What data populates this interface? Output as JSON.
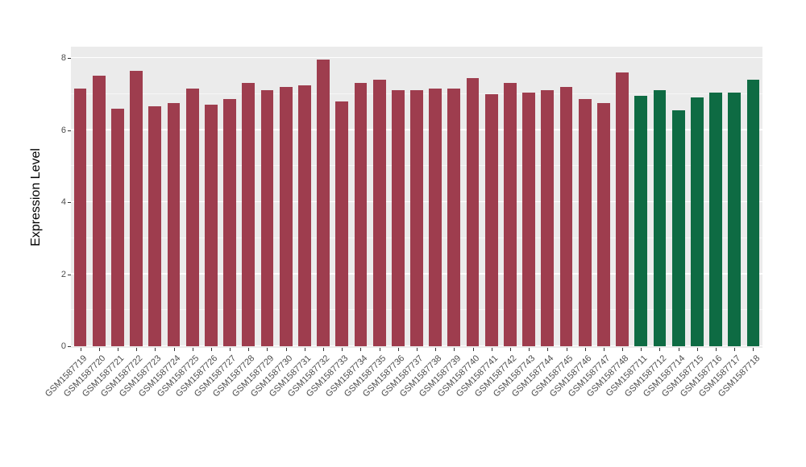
{
  "chart_data": {
    "type": "bar",
    "title": "",
    "xlabel": "",
    "ylabel": "Expression Level",
    "ylim": [
      0,
      8
    ],
    "yticks": [
      0,
      2,
      4,
      6,
      8
    ],
    "yticks_minor": [
      1,
      3,
      5,
      7
    ],
    "grid": true,
    "legend_position": "none",
    "panel_background": "#EBEBEB",
    "major_grid_color": "#FFFFFF",
    "minor_grid_color": "rgba(255,255,255,0.55)",
    "group_colors": {
      "test": "#9E3D4E",
      "control": "#0E6B43"
    },
    "bars": [
      {
        "label": "GSM1587719",
        "value": 7.15,
        "group": "test"
      },
      {
        "label": "GSM1587720",
        "value": 7.5,
        "group": "test"
      },
      {
        "label": "GSM1587721",
        "value": 6.6,
        "group": "test"
      },
      {
        "label": "GSM1587722",
        "value": 7.65,
        "group": "test"
      },
      {
        "label": "GSM1587723",
        "value": 6.65,
        "group": "test"
      },
      {
        "label": "GSM1587724",
        "value": 6.75,
        "group": "test"
      },
      {
        "label": "GSM1587725",
        "value": 7.15,
        "group": "test"
      },
      {
        "label": "GSM1587726",
        "value": 6.7,
        "group": "test"
      },
      {
        "label": "GSM1587727",
        "value": 6.85,
        "group": "test"
      },
      {
        "label": "GSM1587728",
        "value": 7.3,
        "group": "test"
      },
      {
        "label": "GSM1587729",
        "value": 7.1,
        "group": "test"
      },
      {
        "label": "GSM1587730",
        "value": 7.2,
        "group": "test"
      },
      {
        "label": "GSM1587731",
        "value": 7.25,
        "group": "test"
      },
      {
        "label": "GSM1587732",
        "value": 7.95,
        "group": "test"
      },
      {
        "label": "GSM1587733",
        "value": 6.8,
        "group": "test"
      },
      {
        "label": "GSM1587734",
        "value": 7.3,
        "group": "test"
      },
      {
        "label": "GSM1587735",
        "value": 7.4,
        "group": "test"
      },
      {
        "label": "GSM1587736",
        "value": 7.1,
        "group": "test"
      },
      {
        "label": "GSM1587737",
        "value": 7.1,
        "group": "test"
      },
      {
        "label": "GSM1587738",
        "value": 7.15,
        "group": "test"
      },
      {
        "label": "GSM1587739",
        "value": 7.15,
        "group": "test"
      },
      {
        "label": "GSM1587740",
        "value": 7.45,
        "group": "test"
      },
      {
        "label": "GSM1587741",
        "value": 7.0,
        "group": "test"
      },
      {
        "label": "GSM1587742",
        "value": 7.3,
        "group": "test"
      },
      {
        "label": "GSM1587743",
        "value": 7.05,
        "group": "test"
      },
      {
        "label": "GSM1587744",
        "value": 7.1,
        "group": "test"
      },
      {
        "label": "GSM1587745",
        "value": 7.2,
        "group": "test"
      },
      {
        "label": "GSM1587746",
        "value": 6.85,
        "group": "test"
      },
      {
        "label": "GSM1587747",
        "value": 6.75,
        "group": "test"
      },
      {
        "label": "GSM1587748",
        "value": 7.6,
        "group": "test"
      },
      {
        "label": "GSM1587711",
        "value": 6.95,
        "group": "control"
      },
      {
        "label": "GSM1587712",
        "value": 7.1,
        "group": "control"
      },
      {
        "label": "GSM1587714",
        "value": 6.55,
        "group": "control"
      },
      {
        "label": "GSM1587715",
        "value": 6.9,
        "group": "control"
      },
      {
        "label": "GSM1587716",
        "value": 7.05,
        "group": "control"
      },
      {
        "label": "GSM1587717",
        "value": 7.05,
        "group": "control"
      },
      {
        "label": "GSM1587718",
        "value": 7.4,
        "group": "control"
      }
    ]
  }
}
